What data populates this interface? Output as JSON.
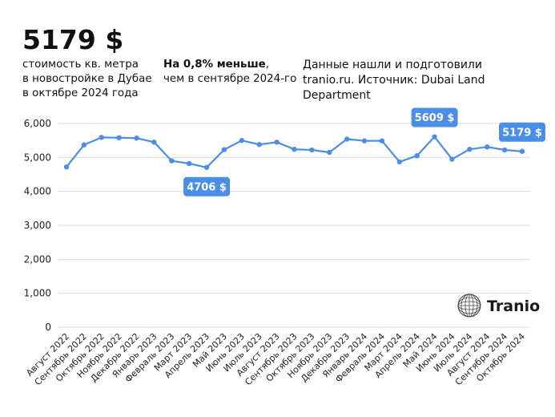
{
  "header": {
    "headline": "5179 $",
    "description_lines": [
      "стоимость кв. метра",
      "в новостройке в Дубае",
      "в октябре 2024 года"
    ],
    "change_bold": "На 0,8% меньше",
    "change_rest_1": ",",
    "change_line2": "чем в сентябре 2024-го",
    "source_lines": [
      "Данные нашли и подготовили",
      "tranio.ru. Источник: Dubai Land",
      "Department"
    ]
  },
  "logo": {
    "text": "Tranio",
    "icon": "tranio-globe-icon"
  },
  "colors": {
    "line": "#4a8ee8",
    "callout": "#4a8ee8",
    "grid": "#dcdcdc",
    "text": "#111111"
  },
  "chart_data": {
    "type": "line",
    "title": "5179 $",
    "xlabel": "",
    "ylabel": "",
    "ylim": [
      0,
      6000
    ],
    "yticks": [
      0,
      1000,
      2000,
      3000,
      4000,
      5000,
      6000
    ],
    "ytick_labels": [
      "0",
      "1,000",
      "2,000",
      "3,000",
      "4,000",
      "5,000",
      "6,000"
    ],
    "grid": true,
    "categories": [
      "Август 2022",
      "Сентябрь 2022",
      "Октябрь 2022",
      "Ноябрь 2022",
      "Декабрь 2022",
      "Январь 2023",
      "Февраль 2023",
      "Март 2023",
      "Апрель 2023",
      "Май 2023",
      "Июнь 2023",
      "Июль 2023",
      "Август 2023",
      "Сентябрь 2023",
      "Октябрь 2023",
      "Ноябрь 2023",
      "Декабрь 2023",
      "Январь 2024",
      "Февраль 2024",
      "Март 2024",
      "Апрель 2024",
      "Май 2024",
      "Июнь 2024",
      "Июль 2024",
      "Август 2024",
      "Сентябрь 2024",
      "Октябрь 2024"
    ],
    "series": [
      {
        "name": "Стоимость кв. метра, $",
        "values": [
          4720,
          5370,
          5590,
          5580,
          5570,
          5450,
          4900,
          4820,
          4706,
          5230,
          5500,
          5380,
          5450,
          5240,
          5220,
          5150,
          5540,
          5490,
          5490,
          4870,
          5050,
          5609,
          4950,
          5240,
          5310,
          5220,
          5179
        ]
      }
    ],
    "annotations": [
      {
        "index": 8,
        "label": "4706 $",
        "placement": "below"
      },
      {
        "index": 21,
        "label": "5609 $",
        "placement": "above"
      },
      {
        "index": 26,
        "label": "5179 $",
        "placement": "above"
      }
    ]
  }
}
